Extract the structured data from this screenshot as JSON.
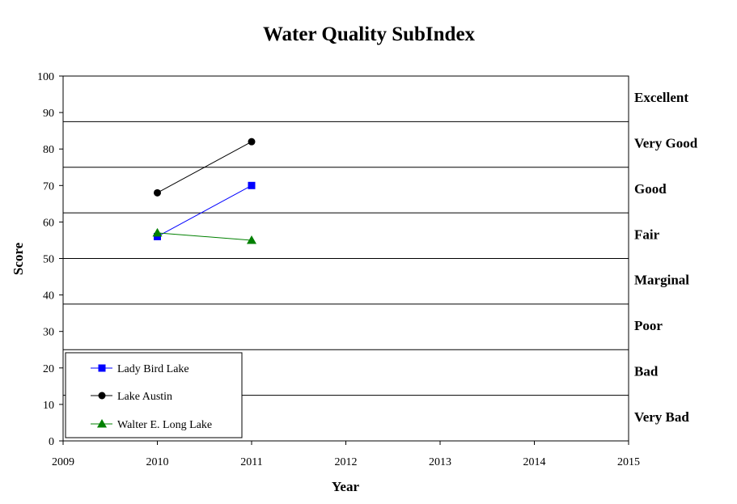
{
  "chart_data": {
    "type": "line",
    "title": "Water Quality SubIndex",
    "xlabel": "Year",
    "ylabel": "Score",
    "xlim": [
      2009,
      2015
    ],
    "ylim": [
      0,
      100
    ],
    "x_ticks": [
      2009,
      2010,
      2011,
      2012,
      2013,
      2014,
      2015
    ],
    "y_ticks": [
      0,
      10,
      20,
      30,
      40,
      50,
      60,
      70,
      80,
      90,
      100
    ],
    "grid": false,
    "legend_position": "bottom-left",
    "band_boundaries": [
      12.5,
      25,
      37.5,
      50,
      62.5,
      75,
      87.5
    ],
    "bands": [
      {
        "label": "Excellent",
        "from": 87.5,
        "to": 100
      },
      {
        "label": "Very Good",
        "from": 75,
        "to": 87.5
      },
      {
        "label": "Good",
        "from": 62.5,
        "to": 75
      },
      {
        "label": "Fair",
        "from": 50,
        "to": 62.5
      },
      {
        "label": "Marginal",
        "from": 37.5,
        "to": 50
      },
      {
        "label": "Poor",
        "from": 25,
        "to": 37.5
      },
      {
        "label": "Bad",
        "from": 12.5,
        "to": 25
      },
      {
        "label": "Very Bad",
        "from": 0,
        "to": 12.5
      }
    ],
    "series": [
      {
        "name": "Lady Bird Lake",
        "color": "#0000ff",
        "marker": "square",
        "x": [
          2010,
          2011
        ],
        "y": [
          56,
          70
        ]
      },
      {
        "name": "Lake Austin",
        "color": "#000000",
        "marker": "circle",
        "x": [
          2010,
          2011
        ],
        "y": [
          68,
          82
        ]
      },
      {
        "name": "Walter E. Long Lake",
        "color": "#008000",
        "marker": "triangle",
        "x": [
          2010,
          2011
        ],
        "y": [
          57,
          55
        ]
      }
    ]
  }
}
